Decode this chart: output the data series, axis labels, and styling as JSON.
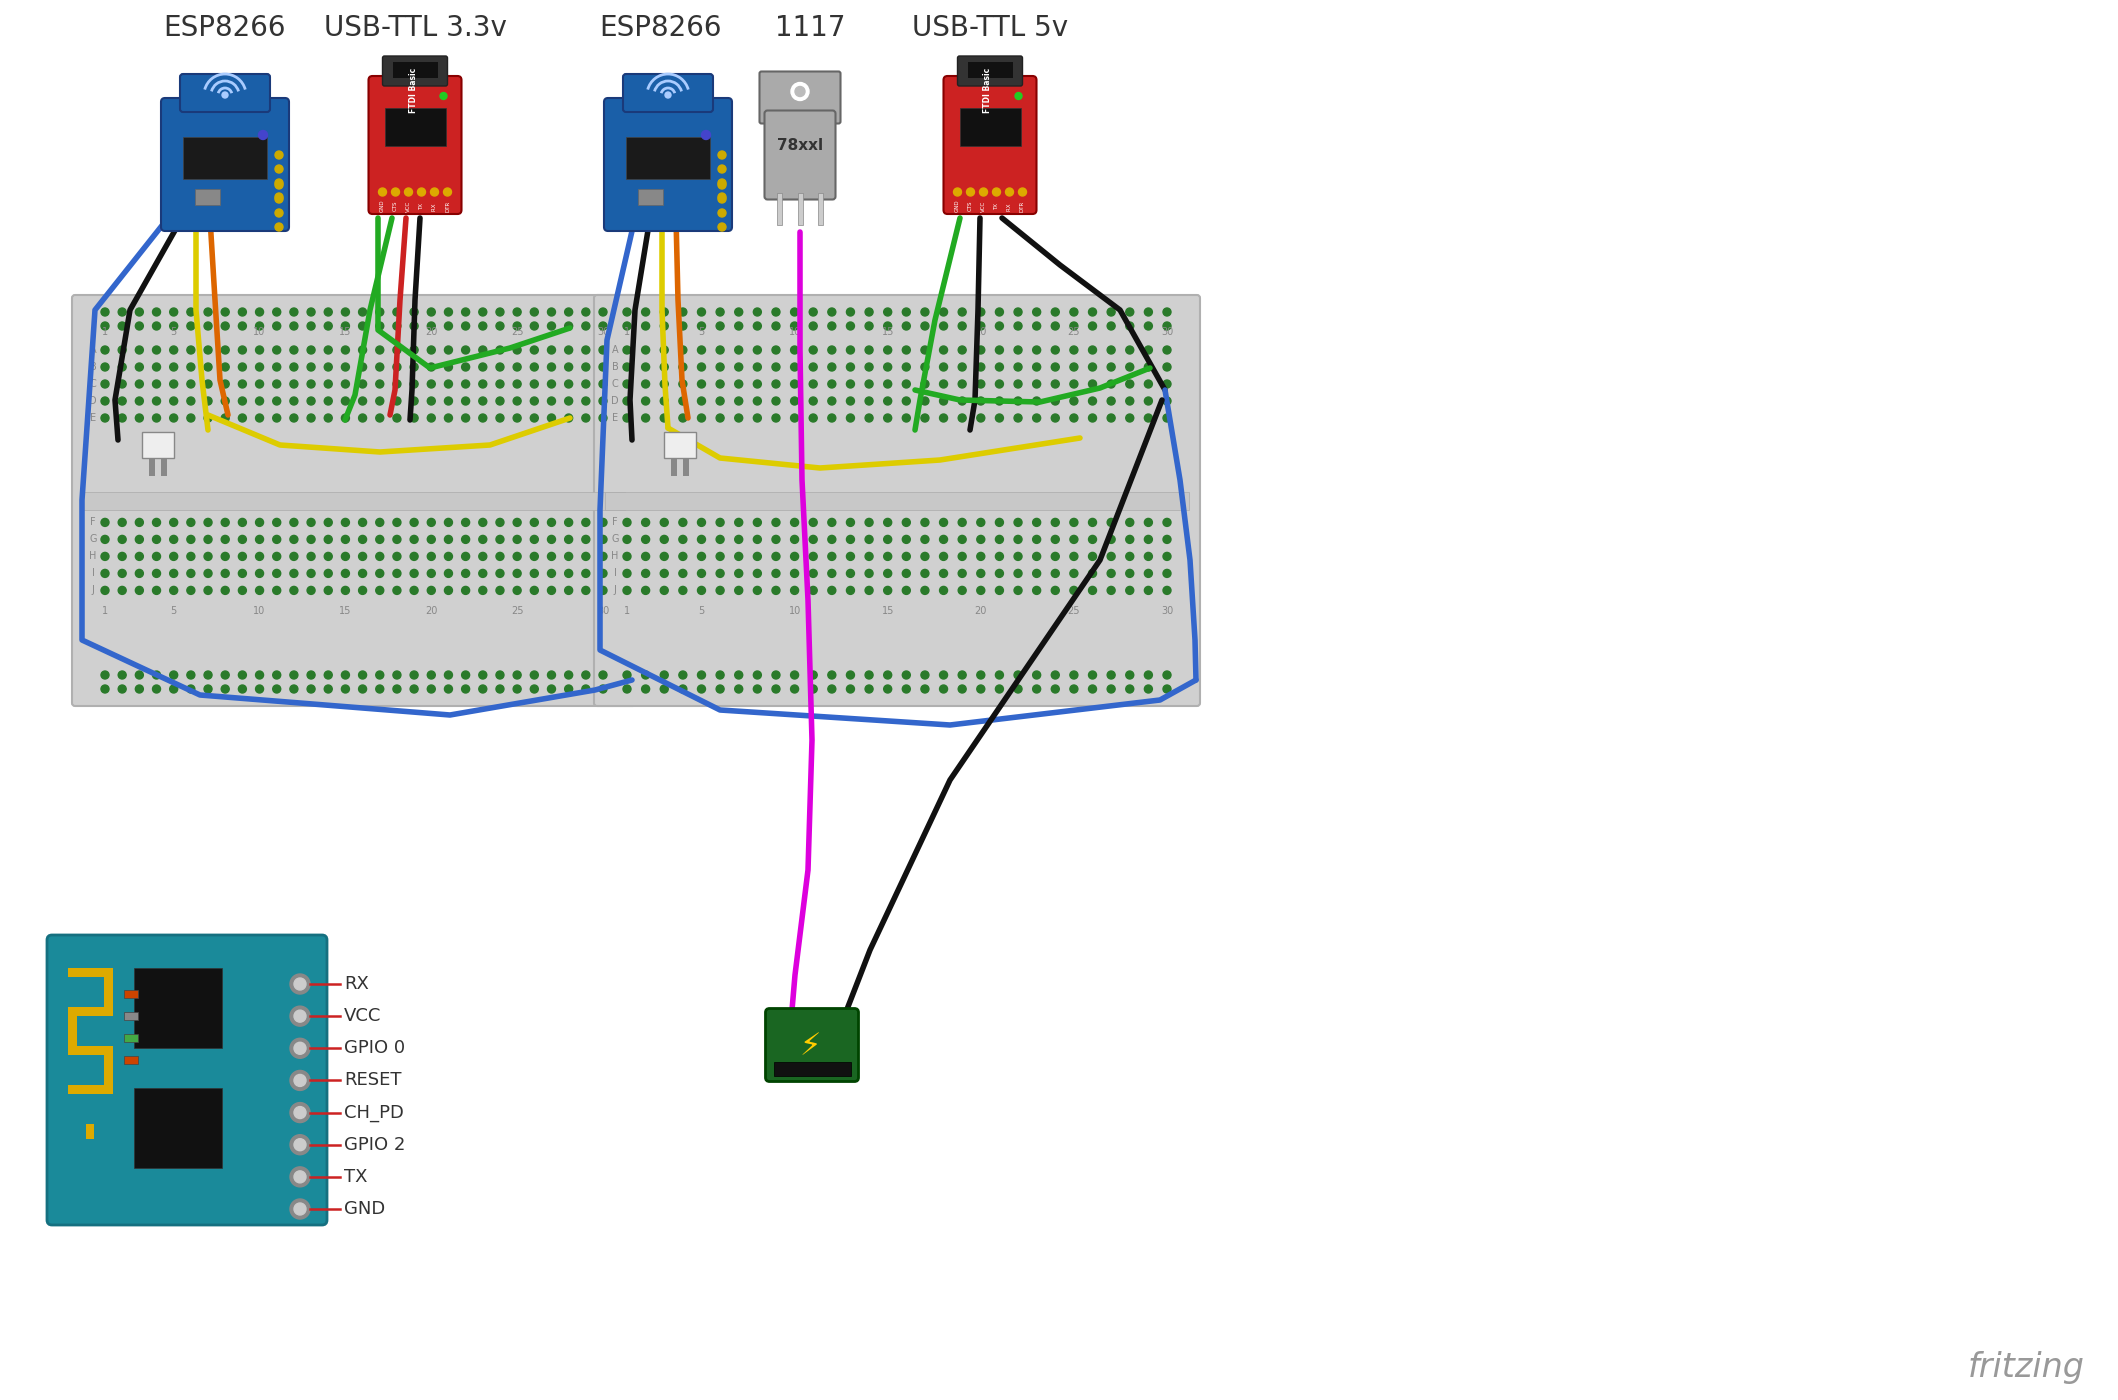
{
  "title_left": "ESP8266",
  "title_usb_ttl_33": "USB-TTL 3.3v",
  "title_right_esp": "ESP8266",
  "title_1117": "1117",
  "title_usb_ttl_5": "USB-TTL 5v",
  "fritzing_text": "fritzing",
  "bg_color": "#ffffff",
  "breadboard_color": "#d0d0d0",
  "breadboard_outline": "#b0b0b0",
  "wire_blue": "#3366cc",
  "wire_black": "#111111",
  "wire_yellow": "#ddcc00",
  "wire_orange": "#dd6600",
  "wire_green": "#22aa22",
  "wire_red": "#cc2222",
  "wire_magenta": "#dd00dd",
  "pin_label_color": "#cc2222",
  "pin_labels": [
    "RX",
    "VCC",
    "GPIO 0",
    "RESET",
    "CH_PD",
    "GPIO 2",
    "TX",
    "GND"
  ],
  "fritzing_color": "#999999"
}
